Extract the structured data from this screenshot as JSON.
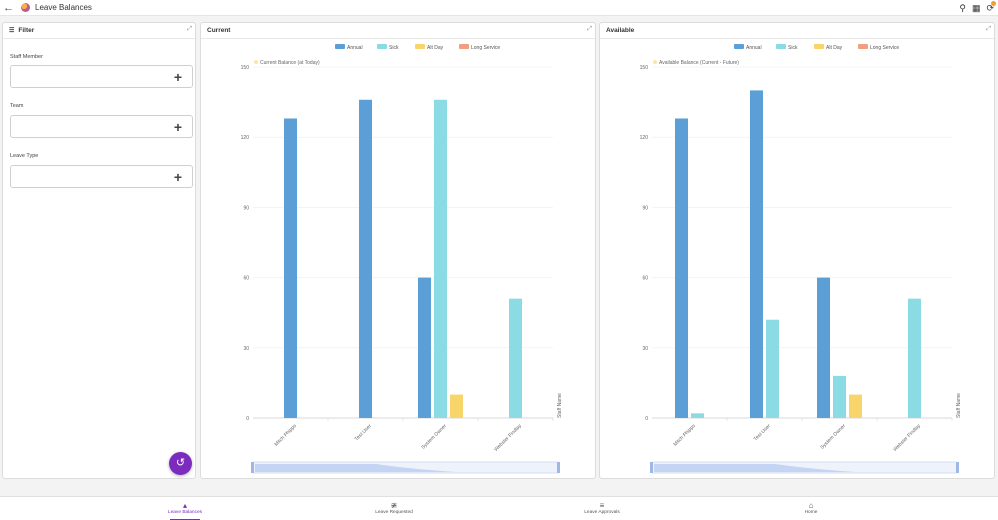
{
  "app": {
    "title": "Leave Balances"
  },
  "filter": {
    "title": "Filter",
    "fields": [
      {
        "label": "Staff Member"
      },
      {
        "label": "Team"
      },
      {
        "label": "Leave Type"
      }
    ]
  },
  "charts": [
    {
      "panel_title": "Current",
      "chart_data": {
        "type": "bar",
        "title": "Current Balance (at Today)",
        "categories": [
          "Mitch Phipps",
          "Test User",
          "System Owner",
          "Webster Findlay"
        ],
        "series": [
          {
            "name": "Annual",
            "color": "#5b9fd6",
            "values": [
              128,
              136,
              60,
              0
            ]
          },
          {
            "name": "Sick",
            "color": "#8adbe3",
            "values": [
              0,
              0,
              136,
              51
            ]
          },
          {
            "name": "Alt Day",
            "color": "#f8d56b",
            "values": [
              0,
              0,
              10,
              0
            ]
          },
          {
            "name": "Long Service",
            "color": "#f0a080",
            "values": [
              0,
              0,
              0,
              0
            ]
          }
        ],
        "yticks": [
          "0",
          "30",
          "60",
          "90",
          "120",
          "150"
        ],
        "ylim": [
          0,
          150
        ],
        "xlabel": "Staff Name"
      }
    },
    {
      "panel_title": "Available",
      "chart_data": {
        "type": "bar",
        "title": "Available Balance (Current - Future)",
        "categories": [
          "Mitch Phipps",
          "Test User",
          "System Owner",
          "Webster Findlay"
        ],
        "series": [
          {
            "name": "Annual",
            "color": "#5b9fd6",
            "values": [
              128,
              140,
              60,
              0
            ]
          },
          {
            "name": "Sick",
            "color": "#8adbe3",
            "values": [
              2,
              42,
              18,
              51
            ]
          },
          {
            "name": "Alt Day",
            "color": "#f8d56b",
            "values": [
              0,
              0,
              10,
              0
            ]
          },
          {
            "name": "Long Service",
            "color": "#f0a080",
            "values": [
              0,
              0,
              0,
              0
            ]
          }
        ],
        "yticks": [
          "0",
          "30",
          "60",
          "90",
          "120",
          "150"
        ],
        "ylim": [
          0,
          150
        ],
        "xlabel": "Staff Name"
      }
    }
  ],
  "nav": [
    {
      "label": "Leave Balances",
      "icon": "chart-icon"
    },
    {
      "label": "Leave Requested",
      "icon": "trend-icon"
    },
    {
      "label": "Leave Approvals",
      "icon": "stack-icon"
    },
    {
      "label": "Home",
      "icon": "home-icon"
    }
  ]
}
